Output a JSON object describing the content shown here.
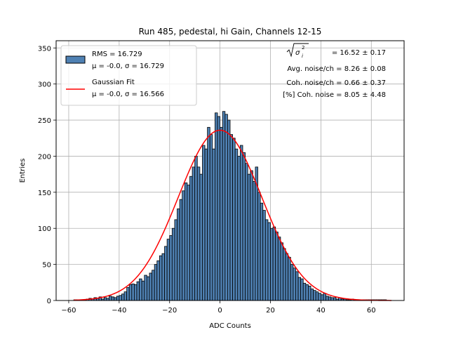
{
  "chart_data": {
    "type": "bar",
    "title": "Run 485, pedestal, hi Gain, Channels 12-15",
    "xlabel": "ADC Counts",
    "ylabel": "Entries",
    "xlim": [
      -65,
      73
    ],
    "ylim": [
      0,
      360
    ],
    "xticks": [
      -60,
      -40,
      -20,
      0,
      20,
      40,
      60
    ],
    "yticks": [
      0,
      50,
      100,
      150,
      200,
      250,
      300,
      350
    ],
    "grid": true,
    "legend_position": "top-left",
    "colors": {
      "hist_fill": "#4f81b3",
      "hist_edge": "#000000",
      "fit_line": "#ff0000"
    },
    "histogram": {
      "name": "RMS = 16.729",
      "name_line2": "μ = -0.0, σ = 16.729",
      "bin_width": 1,
      "x_start": -58,
      "values": [
        1,
        1,
        1,
        1,
        1,
        2,
        3,
        2,
        4,
        3,
        5,
        2,
        4,
        3,
        6,
        5,
        4,
        6,
        7,
        9,
        12,
        18,
        22,
        23,
        22,
        26,
        30,
        27,
        35,
        33,
        38,
        42,
        50,
        55,
        62,
        65,
        75,
        85,
        90,
        100,
        112,
        127,
        140,
        152,
        163,
        160,
        172,
        185,
        200,
        185,
        175,
        215,
        210,
        240,
        230,
        210,
        260,
        255,
        240,
        262,
        258,
        250,
        230,
        225,
        210,
        200,
        215,
        205,
        190,
        175,
        180,
        165,
        185,
        150,
        135,
        125,
        112,
        108,
        100,
        102,
        95,
        88,
        80,
        72,
        65,
        60,
        50,
        45,
        40,
        32,
        30,
        24,
        22,
        20,
        16,
        14,
        12,
        10,
        8,
        10,
        6,
        5,
        4,
        4,
        2,
        4,
        2,
        2,
        1,
        1,
        2,
        1,
        1,
        1,
        1,
        1,
        1,
        1,
        1,
        1,
        1,
        1,
        1,
        1
      ]
    },
    "fit": {
      "name": "Gaussian Fit",
      "name_line2": "μ = -0.0, σ = 16.566",
      "mu": 0.0,
      "sigma": 16.566,
      "amplitude": 236,
      "x_range": [
        -58,
        68
      ]
    },
    "annotations": [
      {
        "pre": "",
        "value": "= 16.52 ± 0.17",
        "has_sqrt": true
      },
      {
        "text": "Avg. noise/ch = 8.26 ± 0.08"
      },
      {
        "text": "Coh. noise/ch = 0.66 ± 0.37"
      },
      {
        "text": "[%] Coh. noise = 8.05 ± 4.48"
      }
    ]
  }
}
